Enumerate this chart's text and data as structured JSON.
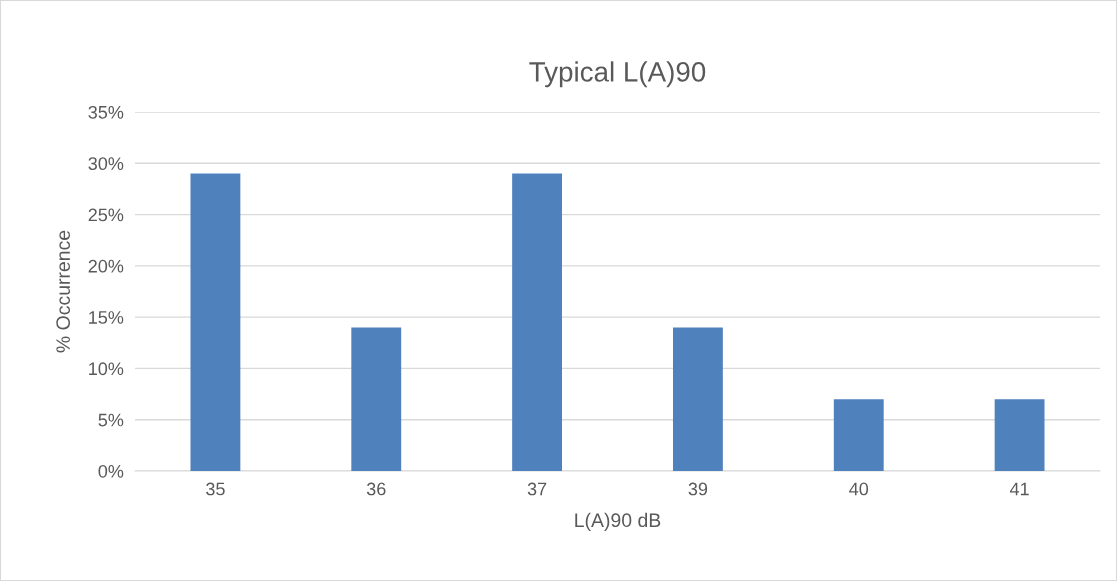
{
  "chart_data": {
    "type": "bar",
    "title": "Typical L(A)90",
    "xlabel": "L(A)90 dB",
    "ylabel": "% Occurrence",
    "categories": [
      "35",
      "36",
      "37",
      "39",
      "40",
      "41"
    ],
    "values": [
      29,
      14,
      29,
      14,
      7,
      7
    ],
    "color": "#4f81bd",
    "ylim": [
      0,
      35
    ],
    "yticks": [
      {
        "value": 0,
        "label": "0%"
      },
      {
        "value": 5,
        "label": "5%"
      },
      {
        "value": 10,
        "label": "10%"
      },
      {
        "value": 15,
        "label": "15%"
      },
      {
        "value": 20,
        "label": "20%"
      },
      {
        "value": 25,
        "label": "25%"
      },
      {
        "value": 30,
        "label": "30%"
      },
      {
        "value": 35,
        "label": "35%"
      }
    ],
    "grid": "y"
  }
}
